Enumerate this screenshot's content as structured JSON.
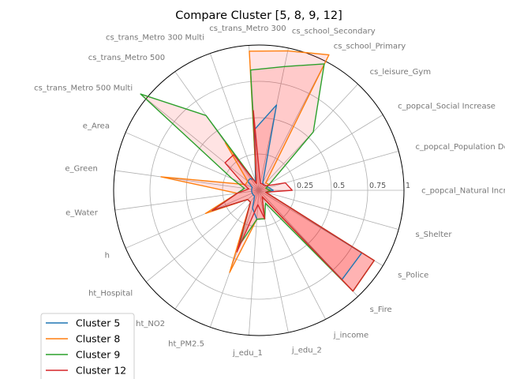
{
  "chart_data": {
    "type": "radar",
    "title": "Compare Cluster [5, 8, 9, 12]",
    "axes": [
      "c_popcal_Natural Increase",
      "c_popcal_Population Density",
      "c_popcal_Social Increase",
      "cs_leisure_Gym",
      "cs_school_Primary",
      "cs_school_Secondary",
      "cs_trans_Metro 300",
      "cs_trans_Metro 300 Multi",
      "cs_trans_Metro 500",
      "cs_trans_Metro 500 Multi",
      "e_Area",
      "e_Green",
      "e_Water",
      "h",
      "ht_Hospital",
      "ht_NO2",
      "ht_PM2.5",
      "j_edu_1",
      "j_edu_2",
      "j_income",
      "s_Fire",
      "s_Police",
      "s_Shelter"
    ],
    "rlim": [
      0,
      1
    ],
    "rticks": [
      0.25,
      0.5,
      0.75,
      1
    ],
    "rtick_labels": [
      "0.25",
      "0.5",
      "0.75",
      "1"
    ],
    "grid": true,
    "legend_position": "lower-left",
    "series": [
      {
        "name": "Cluster 5",
        "color": "#1f77b4",
        "values": [
          0.1,
          0.07,
          0.06,
          0.05,
          0.06,
          0.6,
          0.42,
          0.07,
          0.1,
          0.1,
          0.05,
          0.05,
          0.05,
          0.05,
          0.05,
          0.05,
          0.13,
          0.2,
          0.2,
          0.05,
          0.84,
          0.83,
          0.05
        ]
      },
      {
        "name": "Cluster 8",
        "color": "#ff7f0e",
        "values": [
          0.08,
          0.05,
          0.08,
          0.07,
          1.05,
          0.98,
          0.96,
          0.05,
          0.4,
          0.1,
          0.1,
          0.68,
          0.15,
          0.4,
          0.1,
          0.1,
          0.6,
          0.2,
          0.2,
          0.05,
          0.95,
          0.93,
          0.05
        ]
      },
      {
        "name": "Cluster 9",
        "color": "#2ca02c",
        "values": [
          0.08,
          0.05,
          0.09,
          0.55,
          0.98,
          0.87,
          0.83,
          0.05,
          0.63,
          1.05,
          0.2,
          0.1,
          0.15,
          0.35,
          0.1,
          0.1,
          0.4,
          0.2,
          0.2,
          0.1,
          0.95,
          0.93,
          0.05
        ]
      },
      {
        "name": "Cluster 12",
        "color": "#d62728",
        "values": [
          0.23,
          0.19,
          0.06,
          0.05,
          0.05,
          0.05,
          0.55,
          0.05,
          0.3,
          0.3,
          0.12,
          0.07,
          0.15,
          0.35,
          0.1,
          0.1,
          0.45,
          0.1,
          0.2,
          0.05,
          0.95,
          0.93,
          0.05
        ]
      }
    ]
  }
}
